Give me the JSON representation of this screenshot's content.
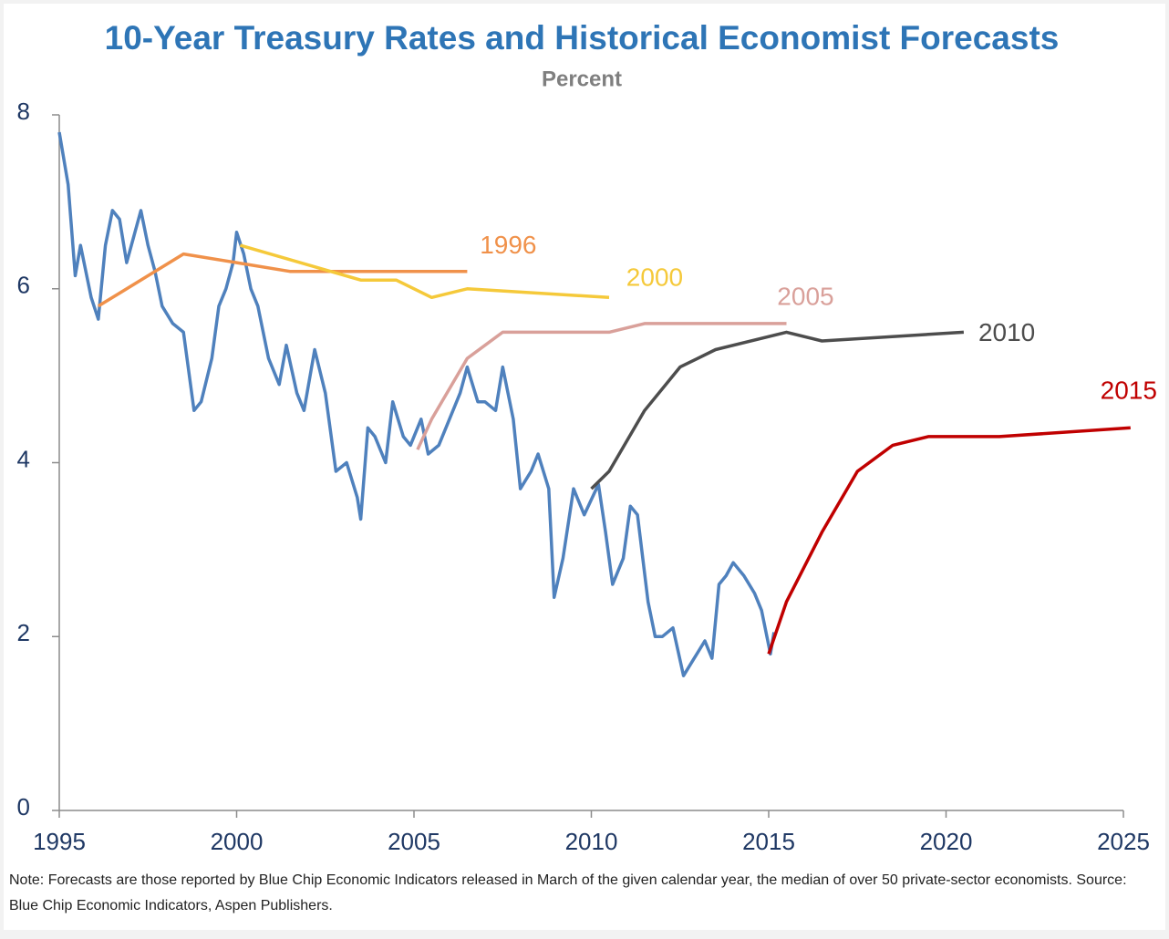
{
  "chart_data": {
    "type": "line",
    "title": "10-Year Treasury Rates and Historical Economist Forecasts",
    "subtitle": "Percent",
    "note": "Note: Forecasts are those reported by Blue Chip Economic Indicators released in March of the given calendar year, the median of over 50 private-sector economists. Source: Blue Chip Economic Indicators, Aspen Publishers.",
    "xlim": [
      1995,
      2025
    ],
    "xticks": [
      1995,
      2000,
      2005,
      2010,
      2015,
      2020,
      2025
    ],
    "ylim": [
      0,
      8
    ],
    "yticks": [
      0,
      2,
      4,
      6,
      8
    ],
    "series": [
      {
        "color": "#4f81bd",
        "x": [
          1995.0,
          1995.25,
          1995.45,
          1995.6,
          1995.9,
          1996.1,
          1996.3,
          1996.5,
          1996.7,
          1996.9,
          1997.1,
          1997.3,
          1997.5,
          1997.7,
          1997.9,
          1998.2,
          1998.5,
          1998.8,
          1999.0,
          1999.3,
          1999.5,
          1999.7,
          1999.9,
          2000.0,
          2000.2,
          2000.4,
          2000.6,
          2000.9,
          2001.2,
          2001.4,
          2001.7,
          2001.9,
          2002.2,
          2002.5,
          2002.8,
          2003.1,
          2003.4,
          2003.5,
          2003.7,
          2003.9,
          2004.2,
          2004.4,
          2004.7,
          2004.9,
          2005.2,
          2005.4,
          2005.7,
          2006.0,
          2006.3,
          2006.5,
          2006.8,
          2007.0,
          2007.3,
          2007.5,
          2007.8,
          2008.0,
          2008.3,
          2008.5,
          2008.8,
          2008.95,
          2009.2,
          2009.5,
          2009.8,
          2010.2,
          2010.4,
          2010.6,
          2010.9,
          2011.1,
          2011.3,
          2011.6,
          2011.8,
          2012.0,
          2012.3,
          2012.6,
          2012.9,
          2013.2,
          2013.4,
          2013.6,
          2013.8,
          2014.0,
          2014.3,
          2014.6,
          2014.8,
          2015.05,
          2015.15
        ],
        "values": [
          7.8,
          7.2,
          6.15,
          6.5,
          5.9,
          5.65,
          6.5,
          6.9,
          6.8,
          6.3,
          6.6,
          6.9,
          6.5,
          6.2,
          5.8,
          5.6,
          5.5,
          4.6,
          4.7,
          5.2,
          5.8,
          6.0,
          6.3,
          6.65,
          6.4,
          6.0,
          5.8,
          5.2,
          4.9,
          5.35,
          4.8,
          4.6,
          5.3,
          4.8,
          3.9,
          4.0,
          3.6,
          3.35,
          4.4,
          4.3,
          4.0,
          4.7,
          4.3,
          4.2,
          4.5,
          4.1,
          4.2,
          4.5,
          4.8,
          5.1,
          4.7,
          4.7,
          4.6,
          5.1,
          4.5,
          3.7,
          3.9,
          4.1,
          3.7,
          2.45,
          2.9,
          3.7,
          3.4,
          3.75,
          3.2,
          2.6,
          2.9,
          3.5,
          3.4,
          2.4,
          2.0,
          2.0,
          2.1,
          1.55,
          1.75,
          1.95,
          1.75,
          2.6,
          2.7,
          2.85,
          2.7,
          2.5,
          2.3,
          1.8,
          2.05
        ]
      },
      {
        "name": "1996",
        "color": "#f0914a",
        "x": [
          1996.1,
          1998.5,
          2000.0,
          2001.5,
          2006.5
        ],
        "values": [
          5.8,
          6.4,
          6.3,
          6.2,
          6.2
        ]
      },
      {
        "name": "2000",
        "color": "#f5c93a",
        "x": [
          2000.1,
          2003.5,
          2004.5,
          2005.5,
          2006.5,
          2010.5
        ],
        "values": [
          6.5,
          6.1,
          6.1,
          5.9,
          6.0,
          5.9
        ]
      },
      {
        "name": "2005",
        "color": "#d9a09a",
        "x": [
          2005.1,
          2005.5,
          2006.5,
          2007.5,
          2010.5,
          2011.5,
          2015.5
        ],
        "values": [
          4.15,
          4.5,
          5.2,
          5.5,
          5.5,
          5.6,
          5.6
        ]
      },
      {
        "name": "2010",
        "color": "#4d4d4d",
        "x": [
          2010.0,
          2010.5,
          2011.5,
          2012.5,
          2013.5,
          2015.5,
          2016.5,
          2020.5
        ],
        "values": [
          3.7,
          3.9,
          4.6,
          5.1,
          5.3,
          5.5,
          5.4,
          5.5
        ]
      },
      {
        "name": "2015",
        "color": "#c00000",
        "x": [
          2015.0,
          2015.5,
          2016.5,
          2017.5,
          2018.5,
          2019.5,
          2021.5,
          2025.2
        ],
        "values": [
          1.8,
          2.4,
          3.2,
          3.9,
          4.2,
          4.3,
          4.3,
          4.4
        ]
      }
    ]
  }
}
